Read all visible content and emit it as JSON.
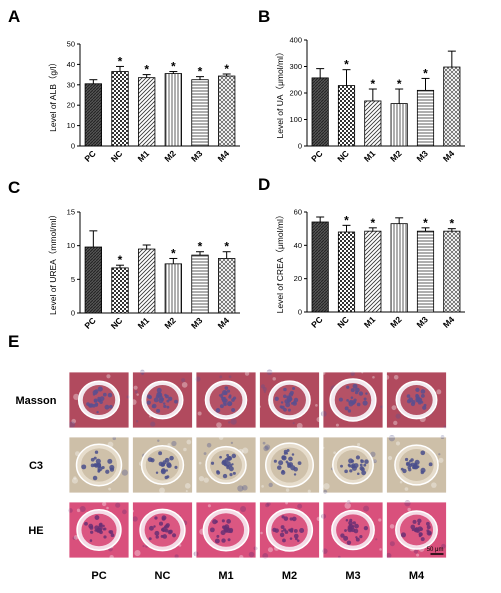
{
  "panel_letters": [
    "A",
    "B",
    "C",
    "D",
    "E"
  ],
  "chart_data": [
    {
      "panel": "A",
      "type": "bar",
      "categories": [
        "PC",
        "NC",
        "M1",
        "M2",
        "M3",
        "M4"
      ],
      "values": [
        30.5,
        36.5,
        33.5,
        35.5,
        32.5,
        34.3
      ],
      "errors": [
        2.0,
        2.5,
        1.5,
        1.0,
        1.5,
        1.0
      ],
      "significant": [
        false,
        true,
        true,
        true,
        true,
        true
      ],
      "significance_mark": "*",
      "ylabel": "Level of ALB（g/l）",
      "ylim": [
        0,
        50
      ],
      "yticks": [
        0,
        10,
        20,
        30,
        40,
        50
      ],
      "patterns": [
        "dense",
        "check",
        "hatch",
        "vert",
        "horiz",
        "grid"
      ]
    },
    {
      "panel": "B",
      "type": "bar",
      "categories": [
        "PC",
        "NC",
        "M1",
        "M2",
        "M3",
        "M4"
      ],
      "values": [
        257,
        228,
        170,
        160,
        210,
        298
      ],
      "errors": [
        35,
        60,
        45,
        55,
        45,
        60
      ],
      "significant": [
        false,
        true,
        true,
        true,
        true,
        false
      ],
      "significance_mark": "*",
      "ylabel": "Level of UA（μmol/ml）",
      "ylim": [
        0,
        400
      ],
      "yticks": [
        0,
        100,
        200,
        300,
        400
      ],
      "patterns": [
        "dense",
        "check",
        "hatch",
        "vert",
        "horiz",
        "grid"
      ]
    },
    {
      "panel": "C",
      "type": "bar",
      "categories": [
        "PC",
        "NC",
        "M1",
        "M2",
        "M3",
        "M4"
      ],
      "values": [
        9.8,
        6.7,
        9.5,
        7.3,
        8.6,
        8.1
      ],
      "errors": [
        2.4,
        0.4,
        0.6,
        0.8,
        0.5,
        1.0
      ],
      "significant": [
        false,
        true,
        false,
        true,
        true,
        true
      ],
      "significance_mark": "*",
      "ylabel": "Level of UREA（mmol/ml）",
      "ylim": [
        0,
        15
      ],
      "yticks": [
        0,
        5,
        10,
        15
      ],
      "patterns": [
        "dense",
        "check",
        "hatch",
        "vert",
        "horiz",
        "grid"
      ]
    },
    {
      "panel": "D",
      "type": "bar",
      "categories": [
        "PC",
        "NC",
        "M1",
        "M2",
        "M3",
        "M4"
      ],
      "values": [
        54,
        48,
        48.5,
        53,
        48.5,
        48.5
      ],
      "errors": [
        3,
        4,
        2,
        3.5,
        2,
        1.5
      ],
      "significant": [
        false,
        true,
        true,
        false,
        true,
        true
      ],
      "significance_mark": "*",
      "ylabel": "Level of CREA（μmol/ml）",
      "ylim": [
        0,
        60
      ],
      "yticks": [
        0,
        20,
        40,
        60
      ],
      "patterns": [
        "dense",
        "check",
        "hatch",
        "vert",
        "horiz",
        "grid"
      ]
    }
  ],
  "histology": {
    "rows": [
      "Masson",
      "C3",
      "HE"
    ],
    "columns": [
      "PC",
      "NC",
      "M1",
      "M2",
      "M3",
      "M4"
    ],
    "scale_bar": "50 μm",
    "stain_colors": {
      "Masson": {
        "bg": "#b14a5e",
        "accent": "#5b4f8f",
        "ring": "#f2e8ee"
      },
      "C3": {
        "bg": "#cdbfa8",
        "accent": "#4a4f8c",
        "ring": "#e6dccb"
      },
      "HE": {
        "bg": "#d9507c",
        "accent": "#6a2f74",
        "ring": "#f4dbe6"
      }
    }
  }
}
